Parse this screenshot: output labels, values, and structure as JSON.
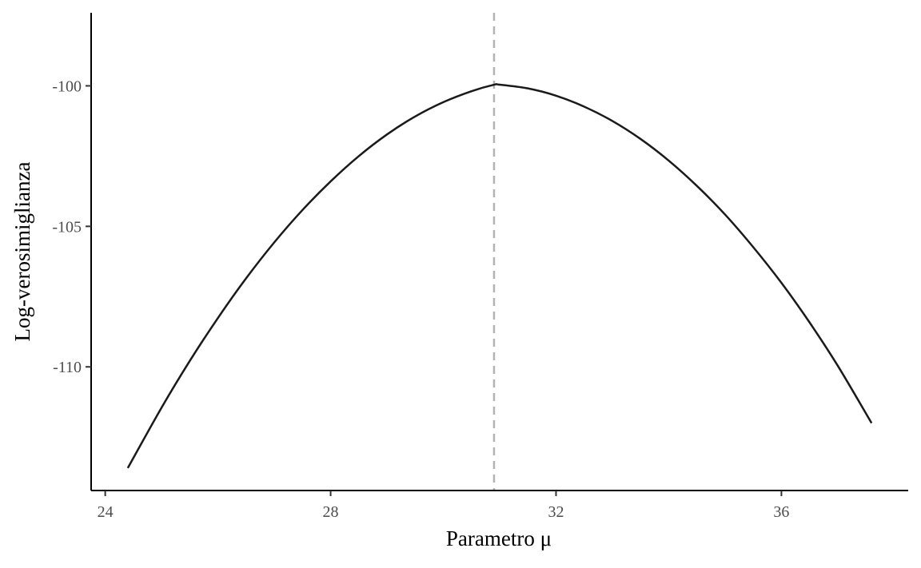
{
  "chart_data": {
    "type": "line",
    "title": "",
    "xlabel": "Parametro μ",
    "ylabel": "Log-verosimiglianza",
    "xlim": [
      23.75,
      38.25
    ],
    "ylim": [
      -114.4,
      -97.4
    ],
    "x_ticks": [
      24,
      28,
      32,
      36
    ],
    "x_tick_labels": [
      "24",
      "28",
      "32",
      "36"
    ],
    "y_ticks": [
      -100,
      -105,
      -110
    ],
    "y_tick_labels": [
      "-100",
      "-105",
      "-110"
    ],
    "grid": false,
    "legend": "none",
    "series": [
      {
        "color": "#1a1a1a",
        "x": [
          24.4,
          25.0,
          25.5,
          26.0,
          26.5,
          27.0,
          27.5,
          28.0,
          28.5,
          29.0,
          29.5,
          30.0,
          30.5,
          30.9,
          31.0,
          31.5,
          32.0,
          32.5,
          33.0,
          33.5,
          34.0,
          34.5,
          35.0,
          35.5,
          36.0,
          36.5,
          37.0,
          37.6
        ],
        "y": [
          -113.6,
          -111.45,
          -109.79,
          -108.26,
          -106.85,
          -105.57,
          -104.42,
          -103.4,
          -102.5,
          -101.73,
          -101.09,
          -100.58,
          -100.19,
          -99.96,
          -99.96,
          -100.09,
          -100.35,
          -100.74,
          -101.25,
          -101.89,
          -102.66,
          -103.56,
          -104.58,
          -105.74,
          -107.01,
          -108.42,
          -109.96,
          -112.0
        ]
      }
    ],
    "annotations": [
      {
        "type": "vline",
        "x": 30.9,
        "style": "dashed",
        "color": "#b3b3b3"
      }
    ]
  }
}
